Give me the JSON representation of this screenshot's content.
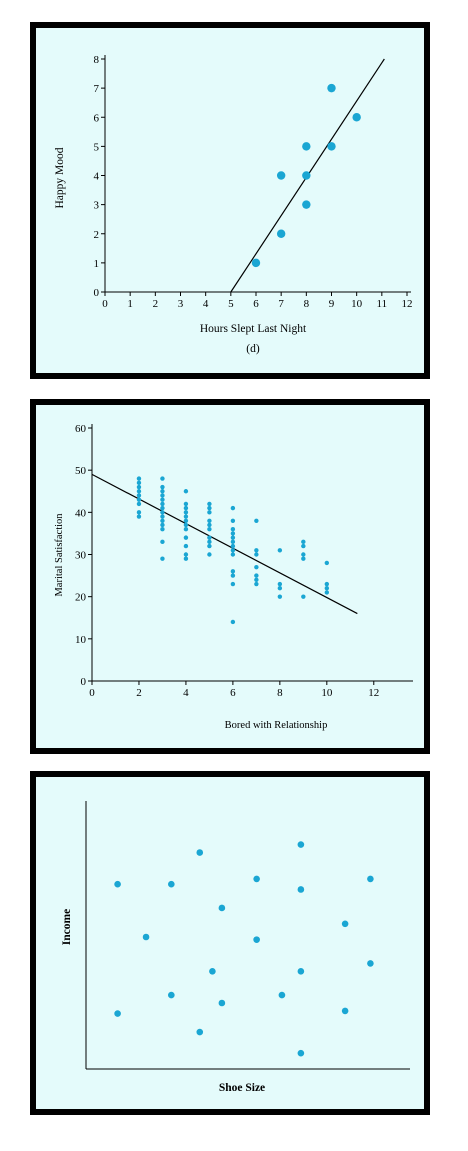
{
  "chart_data": [
    {
      "type": "scatter",
      "xlabel": "Hours Slept Last Night",
      "ylabel": "Happy Mood",
      "caption": "(d)",
      "xlim": [
        0,
        12
      ],
      "ylim": [
        0,
        8
      ],
      "xticks": [
        "0",
        "1",
        "2",
        "3",
        "4",
        "5",
        "6",
        "7",
        "8",
        "9",
        "10",
        "11",
        "12"
      ],
      "yticks": [
        "0",
        "1",
        "2",
        "3",
        "4",
        "5",
        "6",
        "7",
        "8"
      ],
      "points": [
        [
          6,
          1
        ],
        [
          7,
          2
        ],
        [
          7,
          4
        ],
        [
          8,
          3
        ],
        [
          8,
          4
        ],
        [
          8,
          5
        ],
        [
          9,
          5
        ],
        [
          9,
          7
        ],
        [
          10,
          6
        ]
      ],
      "trendline": [
        [
          5,
          0
        ],
        [
          11.1,
          8
        ]
      ],
      "point_color": "#1aa6d3"
    },
    {
      "type": "scatter",
      "xlabel": "Bored with Relationship",
      "ylabel": "Marital Satisfaction",
      "xlim": [
        0,
        13.5
      ],
      "ylim": [
        0,
        60
      ],
      "xticks": [
        "0",
        "2",
        "4",
        "6",
        "8",
        "10",
        "12"
      ],
      "yticks": [
        "0",
        "10",
        "20",
        "30",
        "40",
        "50",
        "60"
      ],
      "points": [
        [
          2,
          39
        ],
        [
          2,
          40
        ],
        [
          2,
          42
        ],
        [
          2,
          43
        ],
        [
          2,
          44
        ],
        [
          2,
          45
        ],
        [
          2,
          46
        ],
        [
          2,
          47
        ],
        [
          2,
          48
        ],
        [
          3,
          29
        ],
        [
          3,
          33
        ],
        [
          3,
          36
        ],
        [
          3,
          37
        ],
        [
          3,
          38
        ],
        [
          3,
          39
        ],
        [
          3,
          40
        ],
        [
          3,
          41
        ],
        [
          3,
          42
        ],
        [
          3,
          43
        ],
        [
          3,
          44
        ],
        [
          3,
          45
        ],
        [
          3,
          46
        ],
        [
          3,
          48
        ],
        [
          4,
          29
        ],
        [
          4,
          30
        ],
        [
          4,
          32
        ],
        [
          4,
          34
        ],
        [
          4,
          36
        ],
        [
          4,
          37
        ],
        [
          4,
          38
        ],
        [
          4,
          39
        ],
        [
          4,
          40
        ],
        [
          4,
          41
        ],
        [
          4,
          42
        ],
        [
          4,
          45
        ],
        [
          5,
          30
        ],
        [
          5,
          32
        ],
        [
          5,
          33
        ],
        [
          5,
          34
        ],
        [
          5,
          36
        ],
        [
          5,
          37
        ],
        [
          5,
          38
        ],
        [
          5,
          40
        ],
        [
          5,
          41
        ],
        [
          5,
          42
        ],
        [
          6,
          14
        ],
        [
          6,
          23
        ],
        [
          6,
          25
        ],
        [
          6,
          26
        ],
        [
          6,
          30
        ],
        [
          6,
          31
        ],
        [
          6,
          32
        ],
        [
          6,
          33
        ],
        [
          6,
          34
        ],
        [
          6,
          35
        ],
        [
          6,
          36
        ],
        [
          6,
          38
        ],
        [
          6,
          41
        ],
        [
          7,
          23
        ],
        [
          7,
          24
        ],
        [
          7,
          25
        ],
        [
          7,
          27
        ],
        [
          7,
          30
        ],
        [
          7,
          31
        ],
        [
          7,
          38
        ],
        [
          8,
          20
        ],
        [
          8,
          22
        ],
        [
          8,
          23
        ],
        [
          8,
          31
        ],
        [
          9,
          20
        ],
        [
          9,
          29
        ],
        [
          9,
          30
        ],
        [
          9,
          32
        ],
        [
          9,
          33
        ],
        [
          10,
          21
        ],
        [
          10,
          22
        ],
        [
          10,
          23
        ],
        [
          10,
          28
        ]
      ],
      "trendline": [
        [
          0,
          49
        ],
        [
          11.3,
          16
        ]
      ],
      "point_color": "#1aa6d3"
    },
    {
      "type": "scatter",
      "xlabel": "Shoe Size",
      "ylabel": "Income",
      "xlim": [
        0,
        1
      ],
      "ylim": [
        0,
        1
      ],
      "points": [
        [
          0.1,
          0.7
        ],
        [
          0.19,
          0.5
        ],
        [
          0.27,
          0.7
        ],
        [
          0.27,
          0.28
        ],
        [
          0.36,
          0.82
        ],
        [
          0.36,
          0.14
        ],
        [
          0.4,
          0.37
        ],
        [
          0.43,
          0.25
        ],
        [
          0.43,
          0.61
        ],
        [
          0.54,
          0.49
        ],
        [
          0.54,
          0.72
        ],
        [
          0.62,
          0.28
        ],
        [
          0.68,
          0.85
        ],
        [
          0.68,
          0.68
        ],
        [
          0.68,
          0.37
        ],
        [
          0.68,
          0.06
        ],
        [
          0.82,
          0.55
        ],
        [
          0.82,
          0.22
        ],
        [
          0.9,
          0.72
        ],
        [
          0.9,
          0.4
        ],
        [
          0.1,
          0.21
        ]
      ],
      "point_color": "#1aa6d3"
    }
  ]
}
